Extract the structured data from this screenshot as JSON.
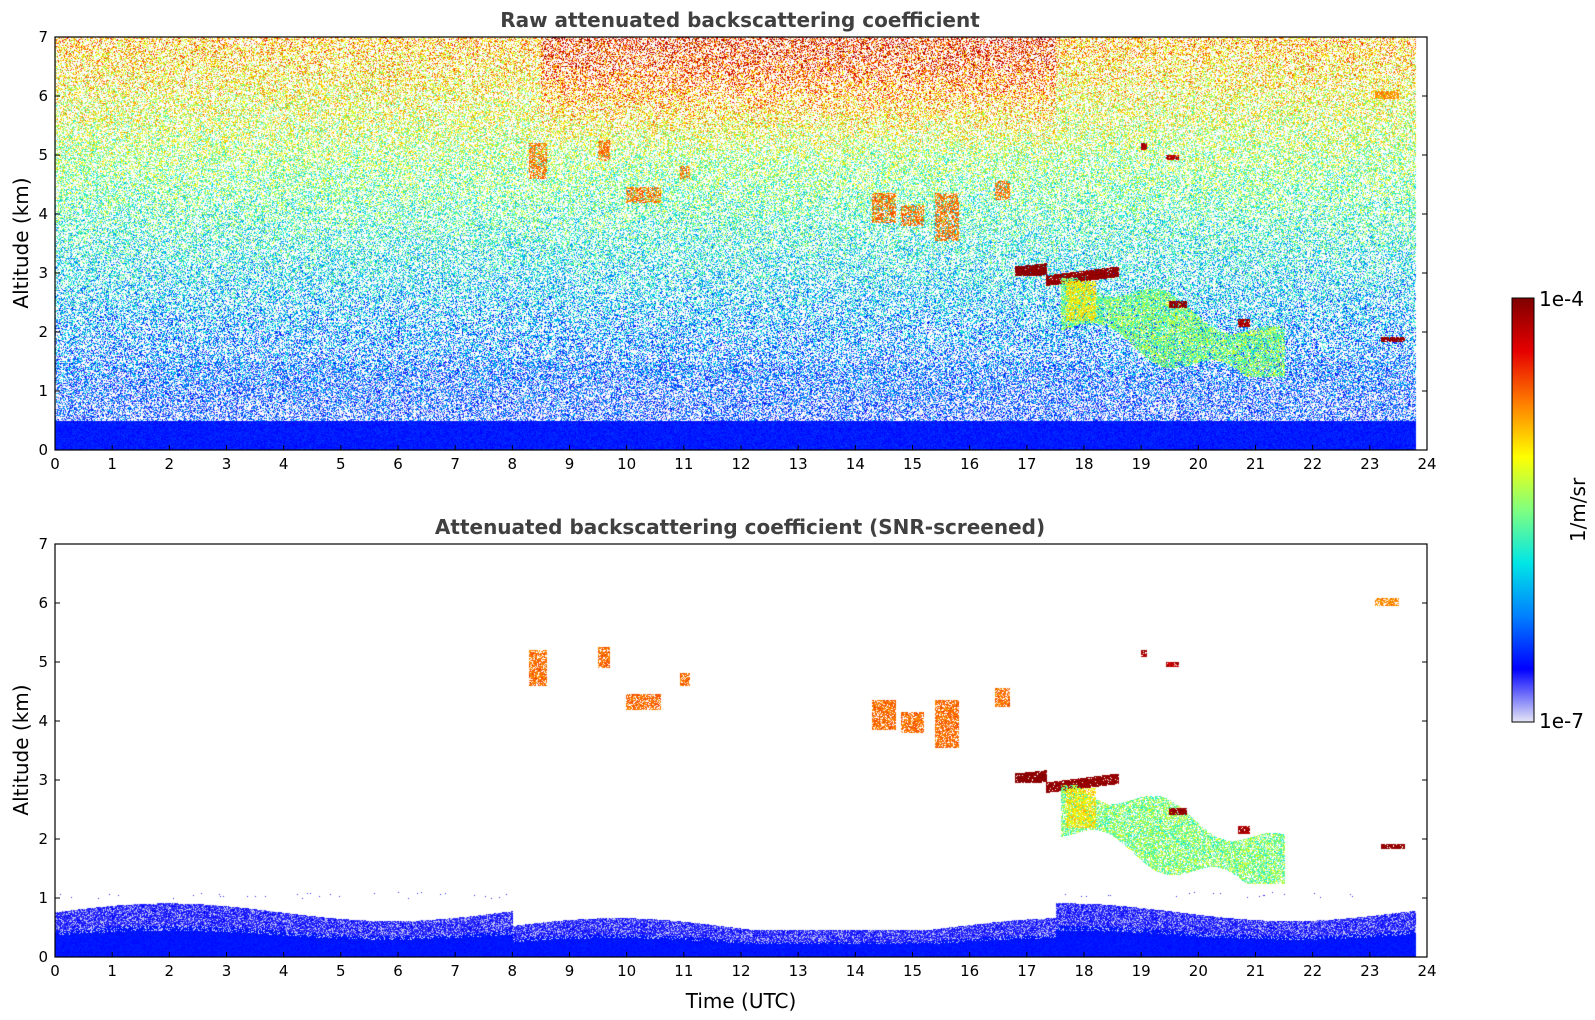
{
  "chart_data": [
    {
      "type": "heatmap",
      "title": "Raw attenuated backscattering coefficient",
      "xlabel": "",
      "ylabel": "Altitude (km)",
      "xlim": [
        0,
        24
      ],
      "ylim": [
        0,
        7
      ],
      "x_ticks": [
        "0",
        "1",
        "2",
        "3",
        "4",
        "5",
        "6",
        "7",
        "8",
        "9",
        "10",
        "11",
        "12",
        "13",
        "14",
        "15",
        "16",
        "17",
        "18",
        "19",
        "20",
        "21",
        "22",
        "23",
        "24"
      ],
      "y_ticks": [
        "0",
        "1",
        "2",
        "3",
        "4",
        "5",
        "6",
        "7"
      ],
      "data_coverage_hours": [
        0,
        23.8
      ],
      "features": [
        {
          "kind": "surface_layer",
          "x": [
            0,
            23.8
          ],
          "y": [
            0,
            0.5
          ],
          "level": 0.12
        },
        {
          "kind": "noise_background",
          "x": [
            0,
            23.8
          ],
          "y": [
            0.5,
            7
          ],
          "level": "increasing with altitude"
        },
        {
          "kind": "liquid_cloud",
          "x": [
            16.8,
            18.6
          ],
          "y": [
            2.8,
            3.1
          ],
          "level": 1.0
        },
        {
          "kind": "precipitation_plume",
          "x": [
            17.6,
            21.5
          ],
          "y": [
            1.3,
            2.9
          ],
          "level": 0.5
        },
        {
          "kind": "ice_fallstreaks",
          "x": [
            8.3,
            16.7
          ],
          "y": [
            3.6,
            5.3
          ],
          "level": 0.75
        }
      ]
    },
    {
      "type": "heatmap",
      "title": "Attenuated backscattering coefficient (SNR-screened)",
      "xlabel": "Time (UTC)",
      "ylabel": "Altitude (km)",
      "xlim": [
        0,
        24
      ],
      "ylim": [
        0,
        7
      ],
      "x_ticks": [
        "0",
        "1",
        "2",
        "3",
        "4",
        "5",
        "6",
        "7",
        "8",
        "9",
        "10",
        "11",
        "12",
        "13",
        "14",
        "15",
        "16",
        "17",
        "18",
        "19",
        "20",
        "21",
        "22",
        "23",
        "24"
      ],
      "y_ticks": [
        "0",
        "1",
        "2",
        "3",
        "4",
        "5",
        "6",
        "7"
      ],
      "data_coverage_hours": [
        0,
        23.8
      ],
      "features": [
        {
          "kind": "boundary_layer",
          "x": [
            0,
            23.8
          ],
          "y": [
            0,
            0.9
          ],
          "level": 0.15
        },
        {
          "kind": "liquid_cloud",
          "x": [
            16.8,
            18.6
          ],
          "y": [
            2.8,
            3.1
          ],
          "level": 1.0
        },
        {
          "kind": "precipitation_plume",
          "x": [
            17.6,
            21.5
          ],
          "y": [
            1.3,
            2.9
          ],
          "level": 0.5
        },
        {
          "kind": "ice_cloud_patches",
          "x": [
            8.3,
            16.7
          ],
          "y": [
            3.6,
            5.2
          ],
          "level": 0.75
        }
      ]
    }
  ],
  "colorbar": {
    "min_label": "1e-7",
    "max_label": "1e-4",
    "label": "1/m/sr",
    "colormap": "jet",
    "stops": [
      "#e6e6f5",
      "#0000ff",
      "#0080ff",
      "#00e6e6",
      "#80ff80",
      "#ffff00",
      "#ff8000",
      "#e60000",
      "#800000"
    ]
  }
}
